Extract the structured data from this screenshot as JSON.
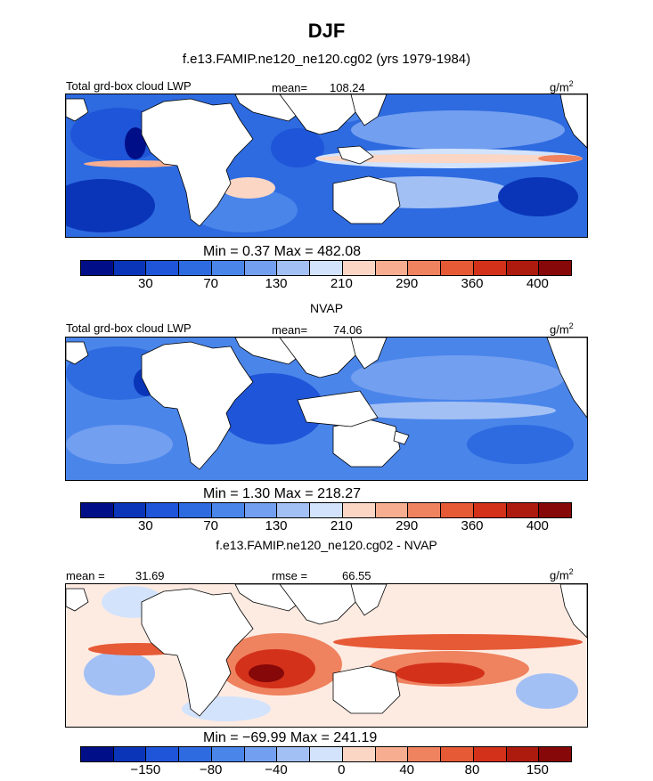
{
  "header": {
    "title": "DJF",
    "subtitle": "f.e13.FAMIP.ne120_ne120.cg02 (yrs 1979-1984)"
  },
  "chart_data": [
    {
      "type": "heatmap",
      "name": "model",
      "left_label": "Total grd-box cloud LWP",
      "stat_label": "mean=",
      "stat_value": "108.24",
      "unit": "g/m",
      "unit_sup": "2",
      "minmax_text": "Min =    0.37  Max = 482.08",
      "min": 0.37,
      "max": 482.08,
      "mean": 108.24,
      "colorbar_ticks": [
        "30",
        "70",
        "130",
        "210",
        "290",
        "360",
        "400"
      ],
      "colorbar_colors": [
        "#000f88",
        "#0a35b8",
        "#1f55d8",
        "#2e6be0",
        "#4a85ea",
        "#739ff0",
        "#a3c0f5",
        "#d3e3fb",
        "#fbd6c4",
        "#f7ae90",
        "#ef825f",
        "#e65a36",
        "#d3311a",
        "#ad1a0e",
        "#860808"
      ]
    },
    {
      "type": "heatmap",
      "name": "NVAP",
      "panel_title": "NVAP",
      "left_label": "Total grd-box cloud LWP",
      "stat_label": "mean=",
      "stat_value": "74.06",
      "unit": "g/m",
      "unit_sup": "2",
      "minmax_text": "Min =    1.30  Max = 218.27",
      "min": 1.3,
      "max": 218.27,
      "mean": 74.06,
      "colorbar_ticks": [
        "30",
        "70",
        "130",
        "210",
        "290",
        "360",
        "400"
      ],
      "colorbar_colors": [
        "#000f88",
        "#0a35b8",
        "#1f55d8",
        "#2e6be0",
        "#4a85ea",
        "#739ff0",
        "#a3c0f5",
        "#d3e3fb",
        "#fbd6c4",
        "#f7ae90",
        "#ef825f",
        "#e65a36",
        "#d3311a",
        "#ad1a0e",
        "#860808"
      ]
    },
    {
      "type": "heatmap",
      "name": "difference",
      "panel_title": "f.e13.FAMIP.ne120_ne120.cg02 - NVAP",
      "left_label": "mean =",
      "left_value": "31.69",
      "stat_label": "rmse =",
      "stat_value": "66.55",
      "unit": "g/m",
      "unit_sup": "2",
      "minmax_text": "Min = −69.99  Max = 241.19",
      "min": -69.99,
      "max": 241.19,
      "mean": 31.69,
      "rmse": 66.55,
      "colorbar_ticks": [
        "−150",
        "−80",
        "−40",
        "0",
        "40",
        "80",
        "150"
      ],
      "colorbar_colors": [
        "#000f88",
        "#0a35b8",
        "#1f55d8",
        "#2e6be0",
        "#4a85ea",
        "#739ff0",
        "#a3c0f5",
        "#d3e3fb",
        "#fbd6c4",
        "#f7ae90",
        "#ef825f",
        "#e65a36",
        "#d3311a",
        "#ad1a0e",
        "#860808"
      ]
    }
  ]
}
